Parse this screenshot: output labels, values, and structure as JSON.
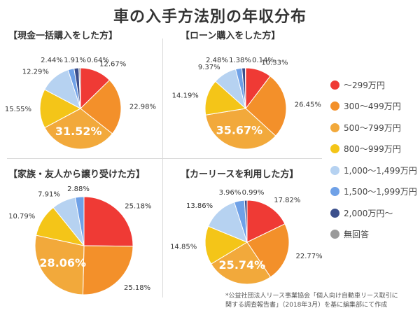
{
  "title": "車の入手方法別の年収分布",
  "legend": [
    {
      "label": "～299万円",
      "color": "#ef3a35"
    },
    {
      "label": "300～499万円",
      "color": "#f3902a"
    },
    {
      "label": "500～799万円",
      "color": "#f2a93b"
    },
    {
      "label": "800～999万円",
      "color": "#f4c518"
    },
    {
      "label": "1,000～1,499万円",
      "color": "#b6d2f1"
    },
    {
      "label": "1,500～1,999万円",
      "color": "#6fa1e7"
    },
    {
      "label": "2,000万円～",
      "color": "#3b4f8c"
    },
    {
      "label": "無回答",
      "color": "#9a9a9a"
    }
  ],
  "chart_data": [
    {
      "type": "pie",
      "title": "【現金一括購入をした方】",
      "categories": [
        "～299万円",
        "300～499万円",
        "500～799万円",
        "800～999万円",
        "1,000～1,499万円",
        "1,500～1,999万円",
        "2,000万円～",
        "無回答"
      ],
      "values": [
        12.67,
        22.98,
        31.52,
        15.55,
        12.29,
        2.44,
        1.91,
        0.64
      ],
      "labels": [
        "12.67%",
        "22.98%",
        "31.52%",
        "15.55%",
        "12.29%",
        "2.44%",
        "1.91%",
        "0.64%"
      ]
    },
    {
      "type": "pie",
      "title": "【ローン購入をした方】",
      "categories": [
        "～299万円",
        "300～499万円",
        "500～799万円",
        "800～999万円",
        "1,000～1,499万円",
        "1,500～1,999万円",
        "2,000万円～",
        "無回答"
      ],
      "values": [
        10.33,
        26.45,
        35.67,
        14.19,
        9.37,
        2.48,
        1.38,
        0.14
      ],
      "labels": [
        "10.33%",
        "26.45%",
        "35.67%",
        "14.19%",
        "9.37%",
        "2.48%",
        "1.38%",
        "0.14%"
      ]
    },
    {
      "type": "pie",
      "title": "【家族・友人から譲り受けた方】",
      "categories": [
        "～299万円",
        "300～499万円",
        "500～799万円",
        "800～999万円",
        "1,000～1,499万円",
        "1,500～1,999万円"
      ],
      "values": [
        25.18,
        25.18,
        28.06,
        10.79,
        7.91,
        2.88
      ],
      "labels": [
        "25.18%",
        "25.18%",
        "28.06%",
        "10.79%",
        "7.91%",
        "2.88%"
      ]
    },
    {
      "type": "pie",
      "title": "【カーリースを利用した方】",
      "categories": [
        "～299万円",
        "300～499万円",
        "500～799万円",
        "800～999万円",
        "1,000～1,499万円",
        "1,500～1,999万円",
        "2,000万円～"
      ],
      "values": [
        17.82,
        22.77,
        25.74,
        14.85,
        13.86,
        3.96,
        0.99
      ],
      "labels": [
        "17.82%",
        "22.77%",
        "25.74%",
        "14.85%",
        "13.86%",
        "3.96%",
        "0.99%"
      ]
    }
  ],
  "note": {
    "line1": "*公益社団法人リース事業協会「個人向け自動車リース取引に",
    "line2": "関する調査報告書」（2018年3月）を基に編集部にて作成"
  }
}
